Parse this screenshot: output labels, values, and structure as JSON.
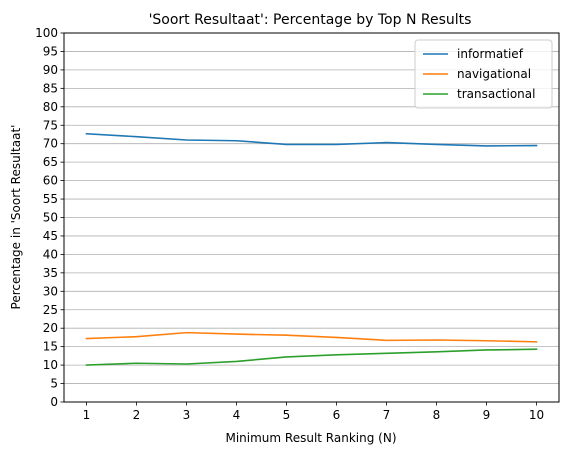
{
  "chart_data": {
    "type": "line",
    "title": "'Soort Resultaat': Percentage by Top N Results",
    "xlabel": "Minimum Result Ranking (N)",
    "ylabel": "Percentage in 'Soort Resultaat'",
    "x": [
      1,
      2,
      3,
      4,
      5,
      6,
      7,
      8,
      9,
      10
    ],
    "xlim": [
      0.55,
      10.45
    ],
    "ylim": [
      0,
      100
    ],
    "yticks": [
      0,
      5,
      10,
      15,
      20,
      25,
      30,
      35,
      40,
      45,
      50,
      55,
      60,
      65,
      70,
      75,
      80,
      85,
      90,
      95,
      100
    ],
    "grid": "horizontal",
    "legend_position": "top-right",
    "series": [
      {
        "name": "informatief",
        "color": "#1f77b4",
        "values": [
          72.7,
          71.9,
          71.0,
          70.8,
          69.8,
          69.8,
          70.3,
          69.8,
          69.4,
          69.5
        ]
      },
      {
        "name": "navigational",
        "color": "#ff7f0e",
        "values": [
          17.2,
          17.7,
          18.8,
          18.4,
          18.1,
          17.5,
          16.7,
          16.8,
          16.6,
          16.3
        ]
      },
      {
        "name": "transactional",
        "color": "#2ca02c",
        "values": [
          10.0,
          10.5,
          10.3,
          11.0,
          12.2,
          12.8,
          13.2,
          13.6,
          14.1,
          14.3
        ]
      }
    ]
  }
}
